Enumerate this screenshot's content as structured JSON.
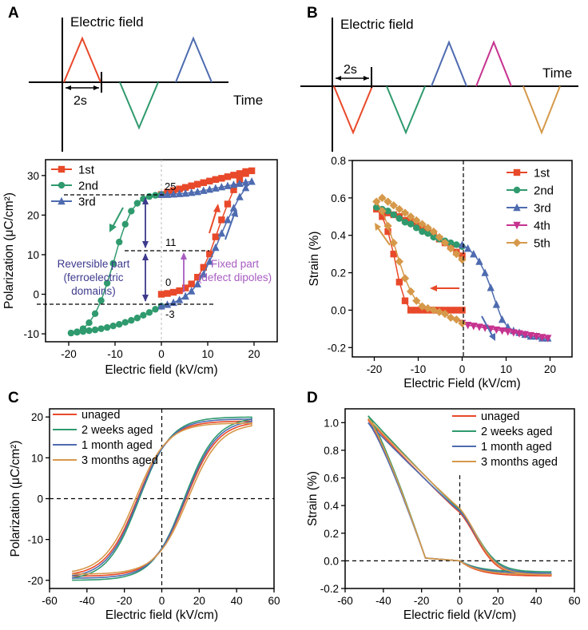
{
  "panels": {
    "A": {
      "letter": "A",
      "waveform": {
        "ylabel": "Electric field",
        "xlabel": "Time",
        "period_label": "2s"
      }
    },
    "B": {
      "letter": "B",
      "waveform": {
        "ylabel": "Electric field",
        "xlabel": "Time",
        "period_label": "2s"
      }
    },
    "C": {
      "letter": "C"
    },
    "D": {
      "letter": "D"
    }
  },
  "annotations": {
    "A": {
      "level_25": "25",
      "level_11": "11",
      "level_0": "0",
      "level_neg3": "-3",
      "reversible_line1": "Reversible part",
      "reversible_line2": "(ferroelectric",
      "reversible_line3": "domains)",
      "fixed_line1": "Fixed part",
      "fixed_line2": "(defect dipoles)"
    }
  },
  "colors": {
    "red": "#e8492a",
    "green": "#2f9a6e",
    "blue": "#4e6bb0",
    "magenta": "#c6338f",
    "orange": "#d6994a",
    "purple_text": "#3d3a8c",
    "purple_arrow": "#a75bc1"
  },
  "chart_data": [
    {
      "id": "A-hysteresis",
      "type": "line",
      "xlabel": "Electric field (kV/cm)",
      "ylabel": "Polarization (μC/cm²)",
      "xlim": [
        -25,
        25
      ],
      "ylim": [
        -12,
        34
      ],
      "xticks": [
        -20,
        -10,
        0,
        10,
        20
      ],
      "yticks": [
        -10,
        0,
        10,
        20,
        30
      ],
      "series": [
        {
          "name": "1st",
          "marker": "square",
          "color": "#e8492a",
          "x": [
            0,
            1.3,
            2.6,
            3.9,
            5.2,
            6.5,
            7.8,
            9.1,
            10.4,
            11.7,
            13,
            14.3,
            15.6,
            16.9,
            18.2,
            19.5,
            18.2,
            16.9,
            15.6,
            14.3,
            13,
            11.7,
            10.4,
            9.1,
            7.8,
            6.5,
            5.2,
            3.9,
            2.6,
            1.3,
            0
          ],
          "y": [
            0,
            0.2,
            0.5,
            0.9,
            1.6,
            2.6,
            4.3,
            6.8,
            10.2,
            14.5,
            18.8,
            22.8,
            26.4,
            29,
            30.5,
            31.2,
            31,
            30.5,
            30.1,
            29.7,
            29.3,
            29,
            28.6,
            28.2,
            27.8,
            27.4,
            27,
            26.6,
            26.2,
            25.8,
            25.2
          ]
        },
        {
          "name": "2nd",
          "marker": "circle",
          "color": "#2f9a6e",
          "x": [
            0,
            -1.3,
            -2.6,
            -3.9,
            -5.2,
            -6.5,
            -7.8,
            -9.1,
            -10.4,
            -11.7,
            -13,
            -14.3,
            -15.6,
            -16.9,
            -18.2,
            -19.5,
            -18.2,
            -16.9,
            -15.6,
            -14.3,
            -13,
            -11.7,
            -10.4,
            -9.1,
            -7.8,
            -6.5,
            -5.2,
            -3.9,
            -2.6,
            -1.3,
            0
          ],
          "y": [
            25.2,
            25,
            24.7,
            24.1,
            23,
            21,
            17.7,
            13.2,
            7.8,
            2.8,
            -1.6,
            -4.9,
            -7.2,
            -8.7,
            -9.5,
            -9.8,
            -9.6,
            -9.4,
            -9.2,
            -9,
            -8.7,
            -8.4,
            -8,
            -7.6,
            -7.1,
            -6.6,
            -6,
            -5.3,
            -4.6,
            -3.8,
            -3
          ]
        },
        {
          "name": "3rd",
          "marker": "triangle",
          "color": "#4e6bb0",
          "x": [
            0,
            1.3,
            2.6,
            3.9,
            5.2,
            6.5,
            7.8,
            9.1,
            10.4,
            11.7,
            13,
            14.3,
            15.6,
            16.9,
            18.2,
            19.5,
            18.2,
            16.9,
            15.6,
            14.3,
            13,
            11.7,
            10.4,
            9.1,
            7.8,
            6.5,
            5.2,
            3.9,
            2.6,
            1.3,
            0
          ],
          "y": [
            -3,
            -2.6,
            -2.1,
            -1.4,
            -0.5,
            0.8,
            2.6,
            5.1,
            8.3,
            11.8,
            15.4,
            18.8,
            21.8,
            24.6,
            26.9,
            28.5,
            28.3,
            28,
            27.7,
            27.4,
            27.1,
            26.8,
            26.5,
            26.2,
            25.9,
            25.7,
            25.5,
            25.4,
            25.3,
            25.2,
            25.2
          ]
        }
      ]
    },
    {
      "id": "B-strain",
      "type": "line",
      "xlabel": "Electric Field (kV/cm)",
      "ylabel": "Strain (%)",
      "xlim": [
        -25,
        25
      ],
      "ylim": [
        -0.25,
        0.8
      ],
      "xticks": [
        -20,
        -10,
        0,
        10,
        20
      ],
      "yticks": [
        -0.2,
        0.0,
        0.2,
        0.4,
        0.6,
        0.8
      ],
      "series": [
        {
          "name": "1st",
          "marker": "square",
          "color": "#e8492a",
          "x": [
            0,
            -1.3,
            -2.6,
            -3.9,
            -5.2,
            -6.5,
            -7.8,
            -9.1,
            -10.4,
            -11.7,
            -13,
            -14.3,
            -15.6,
            -16.9,
            -18.2,
            -19.5,
            -18.2,
            -16.9,
            -15.6,
            -14.3,
            -13,
            -11.7,
            -10.4,
            -9.1,
            -7.8,
            -6.5,
            -5.2,
            -3.9,
            -2.6,
            -1.3,
            0
          ],
          "y": [
            0,
            0,
            0,
            0,
            0,
            0,
            0,
            0,
            0,
            0,
            0.05,
            0.15,
            0.3,
            0.42,
            0.5,
            0.54,
            0.53,
            0.52,
            0.51,
            0.5,
            0.48,
            0.47,
            0.45,
            0.44,
            0.42,
            0.4,
            0.38,
            0.36,
            0.34,
            0.31,
            0.29
          ]
        },
        {
          "name": "2nd",
          "marker": "circle",
          "color": "#2f9a6e",
          "x": [
            0,
            -1.3,
            -2.6,
            -3.9,
            -5.2,
            -6.5,
            -7.8,
            -9.1,
            -10.4,
            -11.7,
            -13,
            -14.3,
            -15.6,
            -16.9,
            -18.2,
            -19.5
          ],
          "y": [
            0.34,
            0.35,
            0.36,
            0.37,
            0.38,
            0.39,
            0.41,
            0.42,
            0.44,
            0.46,
            0.47,
            0.49,
            0.51,
            0.53,
            0.54,
            0.55
          ]
        },
        {
          "name": "3rd",
          "marker": "triangle",
          "color": "#4e6bb0",
          "x": [
            0,
            1.3,
            2.6,
            3.9,
            5.2,
            6.5,
            7.8,
            9.1,
            10.4,
            11.7,
            13,
            14.3,
            15.6,
            16.9,
            18.2,
            19.5
          ],
          "y": [
            0.35,
            0.33,
            0.3,
            0.26,
            0.2,
            0.12,
            0.03,
            -0.05,
            -0.09,
            -0.11,
            -0.12,
            -0.13,
            -0.14,
            -0.14,
            -0.15,
            -0.15
          ]
        },
        {
          "name": "4th",
          "marker": "triangle-down",
          "color": "#c6338f",
          "x": [
            0,
            1.3,
            2.6,
            3.9,
            5.2,
            6.5,
            7.8,
            9.1,
            10.4,
            11.7,
            13,
            14.3,
            15.6,
            16.9,
            18.2,
            19.5
          ],
          "y": [
            -0.07,
            -0.08,
            -0.085,
            -0.09,
            -0.095,
            -0.1,
            -0.105,
            -0.11,
            -0.115,
            -0.12,
            -0.125,
            -0.13,
            -0.135,
            -0.14,
            -0.145,
            -0.15
          ]
        },
        {
          "name": "5th",
          "marker": "diamond",
          "color": "#d6994a",
          "x": [
            0,
            -1.3,
            -2.6,
            -3.9,
            -5.2,
            -6.5,
            -7.8,
            -9.1,
            -10.4,
            -11.7,
            -13,
            -14.3,
            -15.6,
            -16.9,
            -18.2,
            -19.5,
            -18.2,
            -16.9,
            -15.6,
            -14.3,
            -13,
            -11.7,
            -10.4,
            -9.1,
            -7.8,
            -6.5,
            -5.2,
            -3.9,
            -2.6,
            -1.3,
            0
          ],
          "y": [
            -0.07,
            -0.05,
            -0.04,
            -0.02,
            -0.01,
            0,
            0.01,
            0.02,
            0.05,
            0.1,
            0.17,
            0.26,
            0.36,
            0.45,
            0.53,
            0.58,
            0.6,
            0.58,
            0.56,
            0.54,
            0.52,
            0.5,
            0.48,
            0.46,
            0.44,
            0.42,
            0.39,
            0.36,
            0.33,
            0.3,
            0.27
          ]
        }
      ]
    },
    {
      "id": "C-aging-polarization",
      "type": "line",
      "xlabel": "Electric field (kV/cm)",
      "ylabel": "Polarization (μC/cm²)",
      "xlim": [
        -60,
        60
      ],
      "ylim": [
        -22,
        22
      ],
      "xticks": [
        -60,
        -40,
        -20,
        0,
        20,
        40,
        60
      ],
      "yticks": [
        -20,
        -10,
        0,
        10,
        20
      ],
      "series": [
        {
          "name": "unaged",
          "color": "#e8492a",
          "loop": {
            "Ps": 19,
            "Ec": 13
          }
        },
        {
          "name": "2 weeks aged",
          "color": "#2f9a6e",
          "loop": {
            "Ps": 20,
            "Ec": 12
          }
        },
        {
          "name": "1 month aged",
          "color": "#4e6bb0",
          "loop": {
            "Ps": 19.5,
            "Ec": 12.5
          }
        },
        {
          "name": "3 months aged",
          "color": "#d6994a",
          "loop": {
            "Ps": 18.5,
            "Ec": 14
          }
        }
      ]
    },
    {
      "id": "D-aging-strain",
      "type": "line",
      "xlabel": "Electric field (kV/cm)",
      "ylabel": "Strain (%)",
      "xlim": [
        -60,
        60
      ],
      "ylim": [
        -0.2,
        1.1
      ],
      "xticks": [
        -60,
        -40,
        -20,
        0,
        20,
        40,
        60
      ],
      "yticks": [
        -0.2,
        0.0,
        0.2,
        0.4,
        0.6,
        0.8,
        1.0
      ],
      "series": [
        {
          "name": "unaged",
          "color": "#e8492a",
          "loop": {
            "Smax": 1.02,
            "S0": 0.35,
            "Smin": -0.11
          }
        },
        {
          "name": "2 weeks aged",
          "color": "#2f9a6e",
          "loop": {
            "Smax": 1.05,
            "S0": 0.37,
            "Smin": -0.08
          }
        },
        {
          "name": "1 month aged",
          "color": "#4e6bb0",
          "loop": {
            "Smax": 1.0,
            "S0": 0.36,
            "Smin": -0.09
          }
        },
        {
          "name": "3 months aged",
          "color": "#d6994a",
          "loop": {
            "Smax": 1.03,
            "S0": 0.38,
            "Smin": -0.1
          }
        }
      ]
    }
  ]
}
